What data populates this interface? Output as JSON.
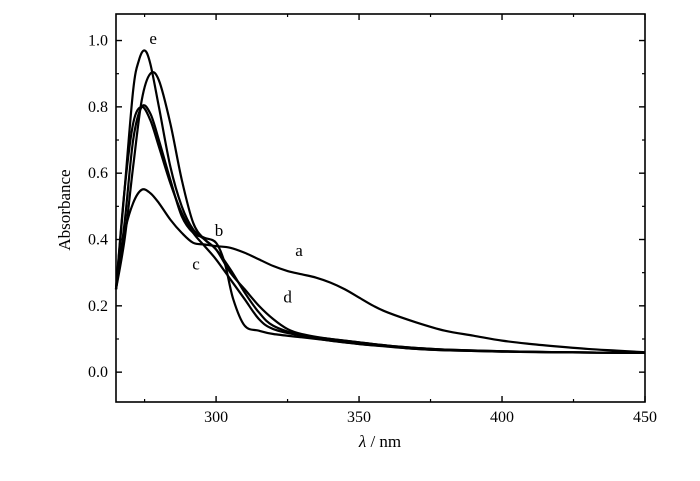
{
  "chart_data": {
    "type": "line",
    "title": "",
    "xlabel_symbol": "λ",
    "xlabel_unit": "/ nm",
    "ylabel": "Absorbance",
    "xlim": [
      265,
      450
    ],
    "ylim": [
      -0.09,
      1.08
    ],
    "xticks": [
      300,
      350,
      400,
      450
    ],
    "xtick_labels": [
      "300",
      "350",
      "400",
      "450"
    ],
    "yticks": [
      0.0,
      0.2,
      0.4,
      0.6,
      0.8,
      1.0
    ],
    "ytick_labels": [
      "0.0",
      "0.2",
      "0.4",
      "0.6",
      "0.8",
      "1.0"
    ],
    "grid": false,
    "legend": "none (curves labeled directly)",
    "series": [
      {
        "name": "a",
        "x": [
          265,
          268,
          271,
          274,
          277,
          280,
          284,
          288,
          292,
          296,
          300,
          305,
          310,
          315,
          320,
          325,
          330,
          335,
          340,
          345,
          350,
          355,
          360,
          370,
          380,
          390,
          400,
          410,
          420,
          430,
          440,
          450
        ],
        "y": [
          0.25,
          0.42,
          0.51,
          0.55,
          0.54,
          0.51,
          0.46,
          0.42,
          0.39,
          0.385,
          0.38,
          0.375,
          0.36,
          0.34,
          0.32,
          0.305,
          0.295,
          0.285,
          0.27,
          0.25,
          0.225,
          0.2,
          0.18,
          0.15,
          0.125,
          0.11,
          0.095,
          0.085,
          0.077,
          0.07,
          0.065,
          0.06
        ]
      },
      {
        "name": "b",
        "x": [
          265,
          268,
          271,
          274,
          277,
          280,
          284,
          288,
          292,
          296,
          300,
          303,
          306,
          310,
          315,
          320,
          330,
          340,
          350,
          360,
          370,
          380,
          400,
          420,
          450
        ],
        "y": [
          0.25,
          0.45,
          0.7,
          0.8,
          0.78,
          0.7,
          0.58,
          0.47,
          0.42,
          0.405,
          0.39,
          0.33,
          0.22,
          0.14,
          0.125,
          0.115,
          0.105,
          0.095,
          0.085,
          0.078,
          0.07,
          0.066,
          0.062,
          0.06,
          0.058
        ]
      },
      {
        "name": "c",
        "x": [
          265,
          268,
          271,
          274,
          277,
          280,
          284,
          288,
          292,
          296,
          300,
          305,
          310,
          315,
          320,
          330,
          340,
          350,
          360,
          370,
          380,
          400,
          420,
          450
        ],
        "y": [
          0.25,
          0.55,
          0.75,
          0.8,
          0.76,
          0.68,
          0.57,
          0.48,
          0.42,
          0.38,
          0.34,
          0.28,
          0.22,
          0.16,
          0.13,
          0.11,
          0.1,
          0.09,
          0.08,
          0.073,
          0.068,
          0.063,
          0.06,
          0.058
        ]
      },
      {
        "name": "d",
        "x": [
          265,
          268,
          271,
          274,
          277,
          280,
          284,
          288,
          292,
          296,
          300,
          305,
          310,
          315,
          320,
          325,
          330,
          340,
          350,
          360,
          370,
          380,
          400,
          420,
          450
        ],
        "y": [
          0.25,
          0.4,
          0.62,
          0.82,
          0.9,
          0.88,
          0.75,
          0.58,
          0.45,
          0.4,
          0.37,
          0.3,
          0.25,
          0.2,
          0.16,
          0.13,
          0.115,
          0.1,
          0.09,
          0.08,
          0.073,
          0.068,
          0.063,
          0.06,
          0.058
        ]
      },
      {
        "name": "e",
        "x": [
          265,
          268,
          271,
          273,
          275,
          277,
          280,
          284,
          288,
          292,
          296,
          300,
          305,
          310,
          315,
          320,
          330,
          340,
          350,
          360,
          370,
          380,
          400,
          420,
          450
        ],
        "y": [
          0.25,
          0.55,
          0.85,
          0.94,
          0.97,
          0.93,
          0.8,
          0.62,
          0.5,
          0.43,
          0.4,
          0.37,
          0.31,
          0.24,
          0.18,
          0.14,
          0.11,
          0.095,
          0.085,
          0.077,
          0.07,
          0.066,
          0.062,
          0.06,
          0.058
        ]
      }
    ],
    "annotations": [
      {
        "text": "a",
        "x": 329,
        "y": 0.35
      },
      {
        "text": "b",
        "x": 301,
        "y": 0.41
      },
      {
        "text": "c",
        "x": 293,
        "y": 0.31
      },
      {
        "text": "d",
        "x": 325,
        "y": 0.21
      },
      {
        "text": "e",
        "x": 278,
        "y": 0.99
      },
      {
        "text": "",
        "x": 287,
        "y": 0.44
      }
    ]
  }
}
